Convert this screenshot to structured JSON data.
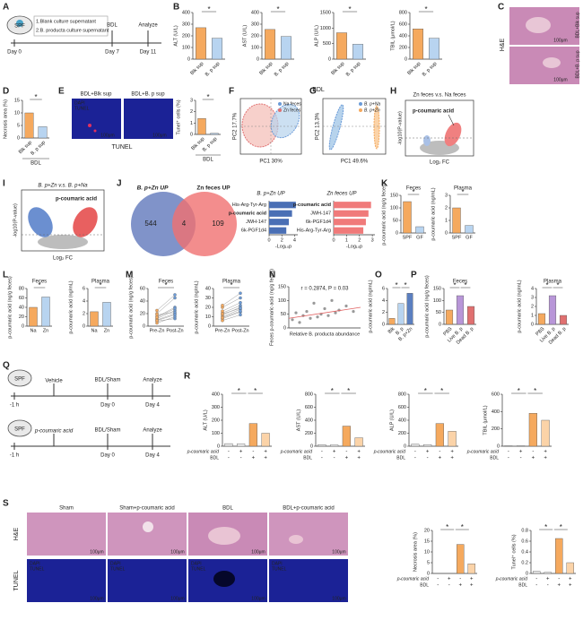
{
  "figure": {
    "panels": [
      "A",
      "B",
      "C",
      "D",
      "E",
      "F",
      "G",
      "H",
      "I",
      "J",
      "K",
      "L",
      "M",
      "N",
      "O",
      "P",
      "Q",
      "R",
      "S"
    ],
    "a": {
      "spf": "SPF",
      "day0": "Day 0",
      "bdl": "BDL",
      "day7": "Day 7",
      "analyze": "Analyze",
      "day11": "Day 11",
      "item1": "1.Blank culture supernatant",
      "item2": "2.B. producta culture supernatant"
    },
    "b_group": "BDL",
    "c": {
      "stain": "H&E",
      "top": "BDL+Blk sup",
      "bottom": "BDL+B. p sup",
      "scale": "100μm"
    },
    "e": {
      "left": "BDL+Blk sup",
      "right": "BDL+B. p sup",
      "dapi": "DAPI",
      "tunel": "TUNEL",
      "scale": "100μm",
      "caption": "TUNEL"
    },
    "f": {
      "xlabel": "PC1 30%",
      "ylabel": "PC2 17.7%",
      "legend": [
        "Na feces",
        "Zn feces"
      ]
    },
    "g": {
      "xlabel": "PC1 49.6%",
      "ylabel": "PC2 13.3%",
      "legend": [
        "B. p+Na",
        "B. p+Zn"
      ]
    },
    "h": {
      "title": "Zn feces v.s. Na feces",
      "label": "p-coumaric acid",
      "ylabel": "-log10(P-value)",
      "xlabel": "Log₂ FC"
    },
    "i": {
      "title": "B. p+Zn v.s. B. p+Na",
      "label": "p-coumaric acid",
      "ylabel": "-log10(P-value)",
      "xlabel": "Log₂ FC"
    },
    "j": {
      "counts": [
        "544",
        "4",
        "109"
      ]
    },
    "q": {
      "rows": [
        {
          "spf": "SPF",
          "treat": "Vehicle",
          "bdl": "BDL/Sham",
          "day0": "Day 0",
          "analyze": "Analyze",
          "day4": "Day 4",
          "start": "-1 h"
        },
        {
          "spf": "SPF",
          "treat": "p-coumaric acid",
          "bdl": "BDL/Sham",
          "day0": "Day 0",
          "analyze": "Analyze",
          "day4": "Day 4",
          "start": "-1 h"
        }
      ]
    },
    "s": {
      "cols": [
        "Sham",
        "Sham+p-coumaric acid",
        "BDL",
        "BDL+p-coumaric acid"
      ],
      "he": "H&E",
      "tunel": "TUNEL",
      "dapi": "DAPI",
      "scale": "100μm"
    }
  },
  "chart_data": [
    {
      "type": "bar",
      "ylabel": "ALT (U/L)",
      "categories": [
        "Blk sup",
        "B. p sup"
      ],
      "values": [
        270,
        180
      ],
      "colors": [
        "#f5a95e",
        "#b8d4f0"
      ],
      "ylim": [
        0,
        400
      ],
      "yticks": [
        0,
        100,
        200,
        300,
        400
      ],
      "stars": [
        "*"
      ]
    },
    {
      "type": "bar",
      "ylabel": "AST (U/L)",
      "categories": [
        "Blk sup",
        "B. p sup"
      ],
      "values": [
        255,
        195
      ],
      "colors": [
        "#f5a95e",
        "#b8d4f0"
      ],
      "ylim": [
        0,
        400
      ],
      "yticks": [
        0,
        100,
        200,
        300,
        400
      ],
      "stars": [
        "*"
      ]
    },
    {
      "type": "bar",
      "ylabel": "ALP (U/L)",
      "categories": [
        "Blk sup",
        "B. p sup"
      ],
      "values": [
        850,
        480
      ],
      "colors": [
        "#f5a95e",
        "#b8d4f0"
      ],
      "ylim": [
        0,
        1500
      ],
      "yticks": [
        0,
        500,
        1000,
        1500
      ],
      "stars": [
        "*"
      ]
    },
    {
      "type": "bar",
      "ylabel": "TBIL (μmol/L)",
      "categories": [
        "Blk sup",
        "B. p sup"
      ],
      "values": [
        520,
        360
      ],
      "colors": [
        "#f5a95e",
        "#b8d4f0"
      ],
      "ylim": [
        0,
        800
      ],
      "yticks": [
        0,
        200,
        400,
        600,
        800
      ],
      "stars": [
        "*"
      ]
    },
    {
      "type": "bar",
      "ylabel": "Necrosis area (%)",
      "categories": [
        "Blk sup",
        "B. p sup"
      ],
      "values": [
        10,
        4.5
      ],
      "colors": [
        "#f5a95e",
        "#b8d4f0"
      ],
      "ylim": [
        0,
        15
      ],
      "yticks": [
        0,
        5,
        10,
        15
      ],
      "stars": [
        "*"
      ],
      "xlabel": "BDL"
    },
    {
      "type": "bar",
      "ylabel": "Tunel⁺ cells (%)",
      "categories": [
        "Blk sup",
        "B. p sup"
      ],
      "values": [
        1.4,
        0.1
      ],
      "colors": [
        "#f5a95e",
        "#b8d4f0"
      ],
      "ylim": [
        0,
        3
      ],
      "yticks": [
        0,
        1,
        2,
        3
      ],
      "stars": [
        "*"
      ],
      "xlabel": "BDL"
    },
    {
      "type": "bar",
      "title": "Feces",
      "ylabel": "p-coumaric acid (ng/g feces)",
      "categories": [
        "SPF",
        "GF"
      ],
      "values": [
        125,
        25
      ],
      "colors": [
        "#f5a95e",
        "#b8d4f0"
      ],
      "ylim": [
        0,
        150
      ],
      "yticks": [
        0,
        50,
        100,
        150
      ],
      "stars": [
        "*"
      ]
    },
    {
      "type": "bar",
      "title": "Plasma",
      "ylabel": "p-coumaric acid (ng/mL)",
      "categories": [
        "SPF",
        "GF"
      ],
      "values": [
        2.0,
        0.6
      ],
      "colors": [
        "#f5a95e",
        "#b8d4f0"
      ],
      "ylim": [
        0,
        3
      ],
      "yticks": [
        0,
        1,
        2,
        3
      ],
      "stars": [
        "*"
      ]
    },
    {
      "type": "bar",
      "title": "Feces",
      "ylabel": "p-coumaric acid (ng/g feces)",
      "categories": [
        "Na",
        "Zn"
      ],
      "values": [
        40,
        62
      ],
      "colors": [
        "#f5a95e",
        "#b8d4f0"
      ],
      "ylim": [
        0,
        80
      ],
      "yticks": [
        0,
        20,
        40,
        60,
        80
      ],
      "stars": [
        "*"
      ]
    },
    {
      "type": "bar",
      "title": "Plasma",
      "ylabel": "p-coumaric acid (ng/mL)",
      "categories": [
        "Na",
        "Zn"
      ],
      "values": [
        2.3,
        3.8
      ],
      "colors": [
        "#f5a95e",
        "#b8d4f0"
      ],
      "ylim": [
        0,
        6
      ],
      "yticks": [
        0,
        2,
        4,
        6
      ],
      "stars": [
        "*"
      ]
    },
    {
      "type": "paired",
      "title": "Feces",
      "ylabel": "p-coumaric acid (ng/g feces)",
      "categories": [
        "Pre-Zn",
        "Post-Zn"
      ],
      "pairs": [
        [
          10,
          20
        ],
        [
          15,
          30
        ],
        [
          8,
          12
        ],
        [
          20,
          45
        ],
        [
          12,
          25
        ],
        [
          18,
          22
        ],
        [
          5,
          15
        ],
        [
          25,
          50
        ],
        [
          14,
          28
        ],
        [
          9,
          18
        ]
      ],
      "colors": [
        "#f5a95e",
        "#6b9bd8"
      ],
      "ylim": [
        0,
        60
      ],
      "yticks": [
        0,
        20,
        40,
        60
      ],
      "stars": [
        "*"
      ]
    },
    {
      "type": "paired",
      "title": "Plasma",
      "ylabel": "p-coumaric acid (ng/mL)",
      "categories": [
        "Pre-Zn",
        "Post-Zn"
      ],
      "pairs": [
        [
          10,
          18
        ],
        [
          14,
          22
        ],
        [
          8,
          15
        ],
        [
          20,
          30
        ],
        [
          12,
          20
        ],
        [
          16,
          25
        ],
        [
          6,
          12
        ],
        [
          22,
          35
        ],
        [
          13,
          19
        ],
        [
          9,
          16
        ]
      ],
      "colors": [
        "#f5a95e",
        "#6b9bd8"
      ],
      "ylim": [
        0,
        40
      ],
      "yticks": [
        0,
        10,
        20,
        30,
        40
      ],
      "stars": [
        "*"
      ]
    },
    {
      "type": "scatter",
      "annotation": "r = 0.2874, P = 0.03",
      "ylabel": "Feces p-coumaric acid (ng/g feces)",
      "xlabel": "Relative B. producta abundance",
      "x": [
        0.05,
        0.1,
        0.15,
        0.2,
        0.25,
        0.3,
        0.35,
        0.4,
        0.45,
        0.5,
        0.55,
        0.6,
        0.65,
        0.7,
        0.8,
        0.9
      ],
      "y": [
        30,
        55,
        20,
        45,
        60,
        35,
        90,
        40,
        50,
        70,
        45,
        100,
        55,
        65,
        80,
        60
      ],
      "xlim": [
        0,
        1
      ],
      "ylim": [
        0,
        150
      ],
      "yticks": [
        0,
        50,
        100,
        150
      ],
      "color": "#999999",
      "trend": {
        "x": [
          0,
          1
        ],
        "y": [
          35,
          75
        ],
        "color": "#e06060"
      }
    },
    {
      "type": "bar",
      "ylabel": "p-coumaric acid (ng/mL)",
      "categories": [
        "Blk",
        "B. p",
        "B. p+Zn"
      ],
      "values": [
        1,
        3.5,
        5.2
      ],
      "colors": [
        "#f5a95e",
        "#b8d4f0",
        "#5b7fc0"
      ],
      "ylim": [
        0,
        6
      ],
      "yticks": [
        0,
        2,
        4,
        6
      ],
      "stars": [
        "*",
        "*"
      ]
    },
    {
      "type": "bar",
      "title": "Feces",
      "ylabel": "p-coumaric acid (ng/g feces)",
      "categories": [
        "PBS",
        "Live B. p",
        "Dead B. p"
      ],
      "values": [
        60,
        120,
        75
      ],
      "colors": [
        "#f5a95e",
        "#b896d8",
        "#e07070"
      ],
      "ylim": [
        0,
        150
      ],
      "yticks": [
        0,
        50,
        100,
        150
      ],
      "stars": [
        "*",
        "*"
      ]
    },
    {
      "type": "bar",
      "title": "Plasma",
      "ylabel": "p-coumaric acid (ng/mL)",
      "categories": [
        "PBS",
        "Live B. p",
        "Dead B. p"
      ],
      "values": [
        1.2,
        3.2,
        1.0
      ],
      "colors": [
        "#f5a95e",
        "#b896d8",
        "#e07070"
      ],
      "ylim": [
        0,
        4
      ],
      "yticks": [
        0,
        1,
        2,
        3,
        4
      ],
      "stars": [
        "*",
        "*"
      ]
    },
    {
      "type": "bar",
      "ylabel": "ALT (U/L)",
      "conditions": [
        {
          "name": "p-coumaric acid",
          "values": [
            "-",
            "+",
            "-",
            "+"
          ]
        },
        {
          "name": "BDL",
          "values": [
            "-",
            "-",
            "+",
            "+"
          ]
        }
      ],
      "values": [
        20,
        18,
        175,
        100
      ],
      "colors": [
        "#e6e6e6",
        "#f0f0f0",
        "#f5a95e",
        "#fbd3a8"
      ],
      "ylim": [
        0,
        400
      ],
      "yticks": [
        0,
        100,
        200,
        300,
        400
      ],
      "stars": [
        "*",
        "*"
      ]
    },
    {
      "type": "bar",
      "ylabel": "AST (U/L)",
      "conditions": [
        {
          "name": "p-coumaric acid",
          "values": [
            "-",
            "+",
            "-",
            "+"
          ]
        },
        {
          "name": "BDL",
          "values": [
            "-",
            "-",
            "+",
            "+"
          ]
        }
      ],
      "values": [
        25,
        20,
        310,
        130
      ],
      "colors": [
        "#e6e6e6",
        "#f0f0f0",
        "#f5a95e",
        "#fbd3a8"
      ],
      "ylim": [
        0,
        800
      ],
      "yticks": [
        0,
        200,
        400,
        600,
        800
      ],
      "stars": [
        "*",
        "*"
      ]
    },
    {
      "type": "bar",
      "ylabel": "ALP (U/L)",
      "conditions": [
        {
          "name": "p-coumaric acid",
          "values": [
            "-",
            "+",
            "-",
            "+"
          ]
        },
        {
          "name": "BDL",
          "values": [
            "-",
            "-",
            "+",
            "+"
          ]
        }
      ],
      "values": [
        30,
        25,
        350,
        230
      ],
      "colors": [
        "#e6e6e6",
        "#f0f0f0",
        "#f5a95e",
        "#fbd3a8"
      ],
      "ylim": [
        0,
        800
      ],
      "yticks": [
        0,
        200,
        400,
        600,
        800
      ],
      "stars": [
        "*",
        "*"
      ]
    },
    {
      "type": "bar",
      "ylabel": "TBIL (μmol/L)",
      "conditions": [
        {
          "name": "p-coumaric acid",
          "values": [
            "-",
            "+",
            "-",
            "+"
          ]
        },
        {
          "name": "BDL",
          "values": [
            "-",
            "-",
            "+",
            "+"
          ]
        }
      ],
      "values": [
        5,
        5,
        380,
        300
      ],
      "colors": [
        "#e6e6e6",
        "#f0f0f0",
        "#f5a95e",
        "#fbd3a8"
      ],
      "ylim": [
        0,
        600
      ],
      "yticks": [
        0,
        200,
        400,
        600
      ],
      "stars": [
        "*",
        "*"
      ]
    },
    {
      "type": "bar",
      "ylabel": "Necrosis area (%)",
      "conditions": [
        {
          "name": "p-coumaric acid",
          "values": [
            "-",
            "+",
            "-",
            "+"
          ]
        },
        {
          "name": "BDL",
          "values": [
            "-",
            "-",
            "+",
            "+"
          ]
        }
      ],
      "values": [
        0,
        0,
        13.5,
        4.5
      ],
      "colors": [
        "#e6e6e6",
        "#f0f0f0",
        "#f5a95e",
        "#fbd3a8"
      ],
      "ylim": [
        0,
        20
      ],
      "yticks": [
        0,
        5,
        10,
        15,
        20
      ],
      "stars": [
        "*",
        "*"
      ]
    },
    {
      "type": "bar",
      "ylabel": "Tunel⁺ cells (%)",
      "conditions": [
        {
          "name": "p-coumaric acid",
          "values": [
            "-",
            "+",
            "-",
            "+"
          ]
        },
        {
          "name": "BDL",
          "values": [
            "-",
            "-",
            "+",
            "+"
          ]
        }
      ],
      "values": [
        0.04,
        0.02,
        0.65,
        0.2
      ],
      "colors": [
        "#e6e6e6",
        "#f0f0f0",
        "#f5a95e",
        "#fbd3a8"
      ],
      "ylim": [
        0,
        0.8
      ],
      "yticks": [
        0,
        0.2,
        0.4,
        0.6,
        0.8
      ],
      "stars": [
        "*",
        "*"
      ]
    },
    {
      "type": "hbar",
      "title": "B. p+Zn UP",
      "categories": [
        "His-Arg-Tyr-Arg",
        "p-coumaric acid",
        "JWH-147",
        "6k-PGF1d4"
      ],
      "label_colors": [
        "#222222",
        "#e03030",
        "#222222",
        "#222222"
      ],
      "values": [
        4.2,
        3.6,
        3.1,
        2.7
      ],
      "color": "#4a6fb5",
      "xlim": [
        0,
        4.5
      ],
      "xticks": [
        0,
        2,
        4
      ],
      "xlabel": "-Log₁₀p"
    },
    {
      "type": "hbar",
      "title": "Zn feces UP",
      "categories": [
        "p-coumaric acid",
        "JWH-147",
        "6k-PGF1d4",
        "His-Arg-Tyr-Arg"
      ],
      "label_colors": [
        "#e03030",
        "#222222",
        "#222222",
        "#222222"
      ],
      "values": [
        2.9,
        2.7,
        2.5,
        2.3
      ],
      "color": "#f07a7a",
      "xlim": [
        0,
        3.2
      ],
      "xticks": [
        0,
        1,
        2,
        3
      ],
      "xlabel": "-Log₁₀p"
    }
  ]
}
